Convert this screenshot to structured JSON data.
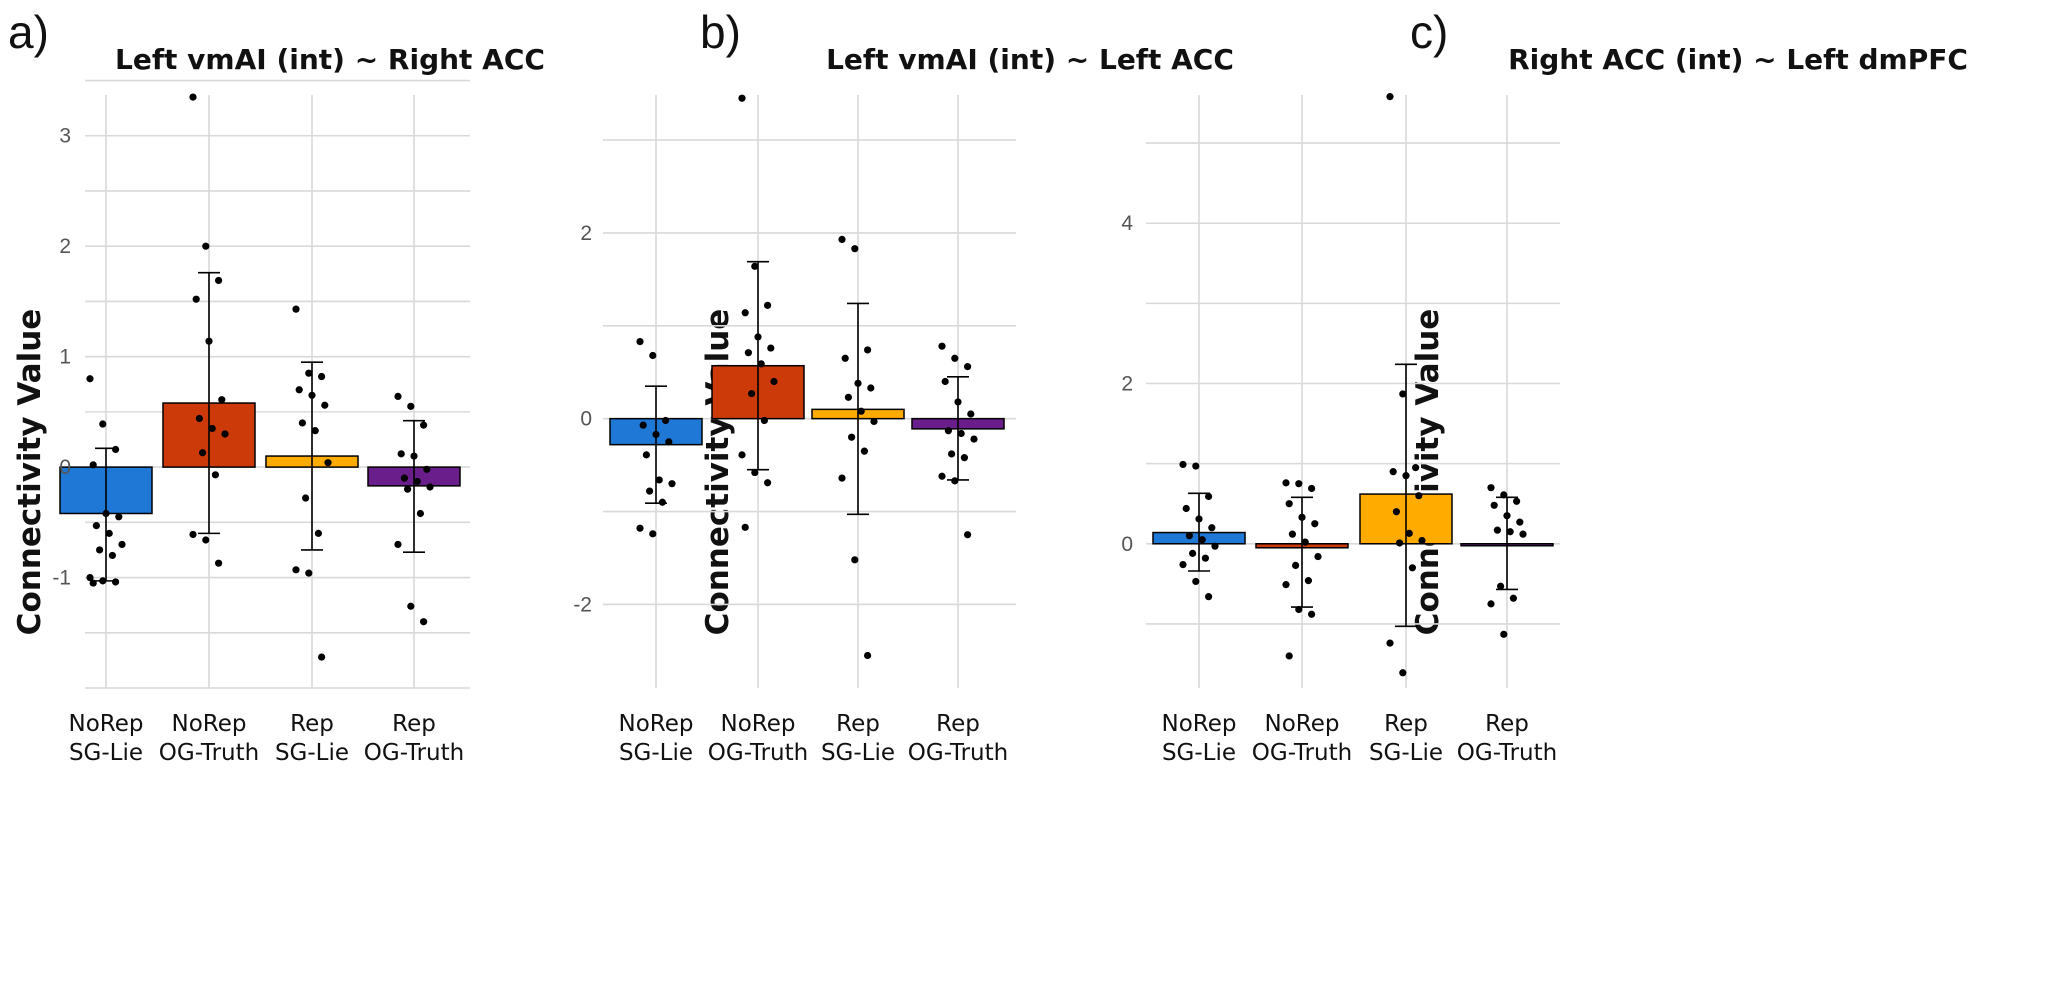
{
  "chart_data": [
    {
      "type": "bar",
      "panel_label": "a)",
      "title": "Left vmAI (int) ~ Right ACC",
      "ylabel": "Connectivity Value",
      "xlabel": "",
      "categories": [
        [
          "NoRep",
          "SG-Lie"
        ],
        [
          "NoRep",
          "OG-Truth"
        ],
        [
          "Rep",
          "SG-Lie"
        ],
        [
          "Rep",
          "OG-Truth"
        ]
      ],
      "values": [
        -0.42,
        0.58,
        0.1,
        -0.17
      ],
      "error_low": [
        -1.03,
        -0.6,
        -0.75,
        -0.77
      ],
      "error_high": [
        0.17,
        1.76,
        0.95,
        0.42
      ],
      "colors": [
        "#1f78d6",
        "#cc3a0a",
        "#ffab00",
        "#6a1e8c"
      ],
      "yticks": [
        -1,
        0,
        1,
        2,
        3
      ],
      "ylim": [
        -2.0,
        3.55
      ],
      "grid": true,
      "points": [
        [
          0.8,
          0.39,
          0.16,
          0.02,
          -0.42,
          -0.45,
          -0.53,
          -0.6,
          -0.7,
          -0.75,
          -0.8,
          -1.0,
          -1.03,
          -1.04,
          -1.05
        ],
        [
          3.35,
          2.0,
          1.69,
          1.52,
          1.14,
          0.61,
          0.44,
          0.35,
          0.3,
          0.13,
          -0.07,
          -0.61,
          -0.66,
          -0.87
        ],
        [
          1.43,
          0.85,
          0.82,
          0.7,
          0.65,
          0.56,
          0.4,
          0.33,
          0.04,
          -0.28,
          -0.6,
          -0.93,
          -0.96,
          -1.72
        ],
        [
          0.64,
          0.55,
          0.38,
          0.12,
          0.1,
          -0.02,
          -0.1,
          -0.13,
          -0.18,
          -0.2,
          -0.42,
          -0.7,
          -1.26,
          -1.4
        ]
      ]
    },
    {
      "type": "bar",
      "panel_label": "b)",
      "title": "Left vmAI (int) ~ Left ACC",
      "ylabel": "Connectivity Value",
      "xlabel": "",
      "categories": [
        [
          "NoRep",
          "SG-Lie"
        ],
        [
          "NoRep",
          "OG-Truth"
        ],
        [
          "Rep",
          "SG-Lie"
        ],
        [
          "Rep",
          "OG-Truth"
        ]
      ],
      "values": [
        -0.28,
        0.57,
        0.1,
        -0.11
      ],
      "error_low": [
        -0.91,
        -0.55,
        -1.03,
        -0.66
      ],
      "error_high": [
        0.35,
        1.69,
        1.24,
        0.45
      ],
      "colors": [
        "#1f78d6",
        "#cc3a0a",
        "#ffab00",
        "#6a1e8c"
      ],
      "yticks": [
        -2,
        0,
        2
      ],
      "ylim": [
        -2.9,
        3.7
      ],
      "grid": true,
      "points": [
        [
          0.83,
          0.68,
          -0.02,
          -0.07,
          -0.17,
          -0.25,
          -0.39,
          -0.66,
          -0.7,
          -0.78,
          -0.9,
          -1.18,
          -1.24
        ],
        [
          3.45,
          1.64,
          1.22,
          1.14,
          0.88,
          0.76,
          0.71,
          0.59,
          0.4,
          0.27,
          -0.02,
          -0.39,
          -0.58,
          -0.69,
          -1.17
        ],
        [
          1.93,
          1.83,
          0.74,
          0.65,
          0.38,
          0.33,
          0.23,
          0.08,
          -0.03,
          -0.2,
          -0.35,
          -0.64,
          -1.52,
          -2.55
        ],
        [
          0.78,
          0.65,
          0.56,
          0.4,
          0.18,
          0.05,
          -0.13,
          -0.16,
          -0.22,
          -0.38,
          -0.42,
          -0.62,
          -0.67,
          -1.25
        ]
      ]
    },
    {
      "type": "bar",
      "panel_label": "c)",
      "title": "Right ACC (int) ~ Left dmPFC",
      "ylabel": "Connectivity Value",
      "xlabel": "",
      "categories": [
        [
          "NoRep",
          "SG-Lie"
        ],
        [
          "NoRep",
          "OG-Truth"
        ],
        [
          "Rep",
          "SG-Lie"
        ],
        [
          "Rep",
          "OG-Truth"
        ]
      ],
      "values": [
        0.14,
        -0.05,
        0.62,
        0.0
      ],
      "error_low": [
        -0.34,
        -0.79,
        -1.03,
        -0.57
      ],
      "error_high": [
        0.63,
        0.58,
        2.24,
        0.58
      ],
      "colors": [
        "#1f78d6",
        "#cc3a0a",
        "#ffab00",
        "#6a1e8c"
      ],
      "yticks": [
        0,
        2,
        4
      ],
      "ylim": [
        -1.8,
        5.85
      ],
      "grid": true,
      "points": [
        [
          0.99,
          0.97,
          0.59,
          0.44,
          0.31,
          0.2,
          0.1,
          0.05,
          -0.03,
          -0.12,
          -0.18,
          -0.26,
          -0.47,
          -0.66
        ],
        [
          0.76,
          0.75,
          0.69,
          0.5,
          0.33,
          0.25,
          0.12,
          0.02,
          -0.16,
          -0.27,
          -0.46,
          -0.51,
          -0.82,
          -0.88,
          -1.4
        ],
        [
          5.58,
          1.87,
          0.95,
          0.9,
          0.85,
          0.6,
          0.4,
          0.13,
          0.04,
          0.01,
          -0.3,
          -1.24,
          -1.61
        ],
        [
          0.7,
          0.61,
          0.53,
          0.48,
          0.35,
          0.27,
          0.17,
          0.15,
          0.12,
          -0.53,
          -0.68,
          -0.75,
          -1.13
        ]
      ]
    }
  ]
}
